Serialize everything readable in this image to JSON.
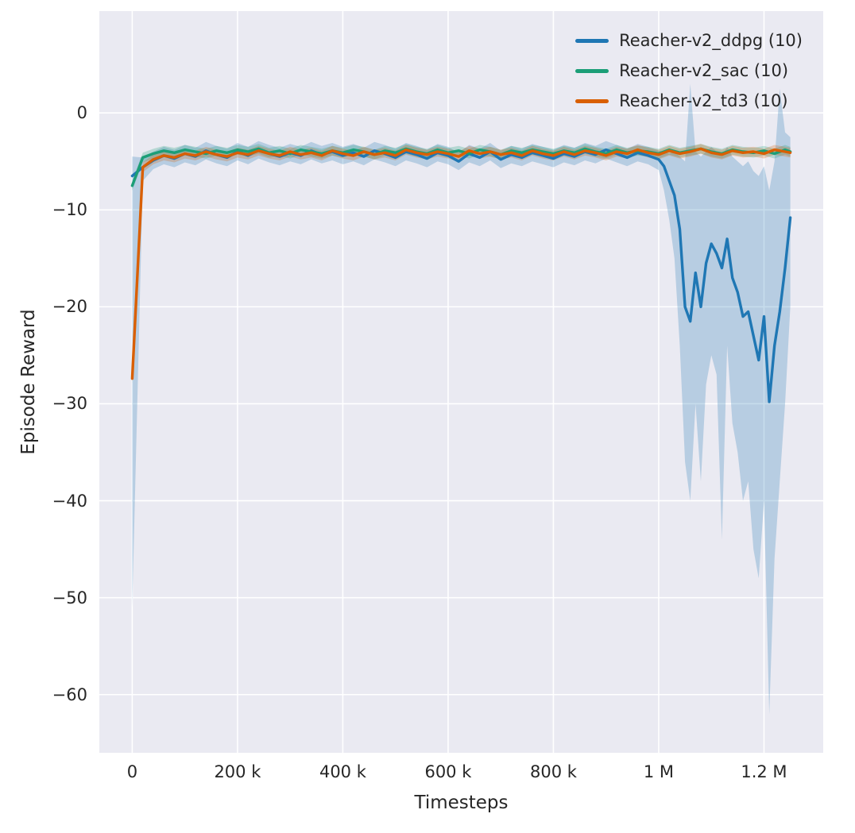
{
  "figure": {
    "background": "#ffffff",
    "plot_background": "#eaeaf2",
    "grid_color": "#ffffff",
    "text_color": "#262626",
    "band_opacity": 0.25
  },
  "chart_data": {
    "type": "line",
    "title": "",
    "xlabel": "Timesteps",
    "ylabel": "Episode Reward",
    "xlim": [
      -62500,
      1312500
    ],
    "ylim": [
      -66,
      10.5
    ],
    "grid": true,
    "legend_position": "upper right",
    "xticks": [
      {
        "v": 0,
        "label": "0"
      },
      {
        "v": 200000,
        "label": "200 k"
      },
      {
        "v": 400000,
        "label": "400 k"
      },
      {
        "v": 600000,
        "label": "600 k"
      },
      {
        "v": 800000,
        "label": "800 k"
      },
      {
        "v": 1000000,
        "label": "1 M"
      },
      {
        "v": 1200000,
        "label": "1.2 M"
      }
    ],
    "yticks": [
      {
        "v": 0,
        "label": "0"
      },
      {
        "v": -10,
        "label": "−10"
      },
      {
        "v": -20,
        "label": "−20"
      },
      {
        "v": -30,
        "label": "−30"
      },
      {
        "v": -40,
        "label": "−40"
      },
      {
        "v": -50,
        "label": "−50"
      },
      {
        "v": -60,
        "label": "−60"
      }
    ],
    "x": [
      0,
      20000,
      40000,
      60000,
      80000,
      100000,
      120000,
      140000,
      160000,
      180000,
      200000,
      220000,
      240000,
      260000,
      280000,
      300000,
      320000,
      340000,
      360000,
      380000,
      400000,
      420000,
      440000,
      460000,
      480000,
      500000,
      520000,
      540000,
      560000,
      580000,
      600000,
      620000,
      640000,
      660000,
      680000,
      700000,
      720000,
      740000,
      760000,
      780000,
      800000,
      820000,
      840000,
      860000,
      880000,
      900000,
      920000,
      940000,
      960000,
      980000,
      1000000,
      1020000,
      1040000,
      1060000,
      1080000,
      1100000,
      1120000,
      1140000,
      1160000,
      1180000,
      1200000,
      1220000,
      1240000,
      1250000
    ],
    "series": [
      {
        "name": "Reacher-v2_ddpg (10)",
        "color": "#1f77b4",
        "x": [
          0,
          20000,
          40000,
          60000,
          80000,
          100000,
          120000,
          140000,
          160000,
          180000,
          200000,
          220000,
          240000,
          260000,
          280000,
          300000,
          320000,
          340000,
          360000,
          380000,
          400000,
          420000,
          440000,
          460000,
          480000,
          500000,
          520000,
          540000,
          560000,
          580000,
          600000,
          620000,
          640000,
          660000,
          680000,
          700000,
          720000,
          740000,
          760000,
          780000,
          800000,
          820000,
          840000,
          860000,
          880000,
          900000,
          920000,
          940000,
          960000,
          980000,
          1000000,
          1010000,
          1020000,
          1030000,
          1040000,
          1050000,
          1060000,
          1070000,
          1080000,
          1090000,
          1100000,
          1110000,
          1120000,
          1130000,
          1140000,
          1150000,
          1160000,
          1170000,
          1180000,
          1190000,
          1200000,
          1210000,
          1220000,
          1230000,
          1240000,
          1250000
        ],
        "y": [
          -6.5,
          -5.6,
          -4.9,
          -4.4,
          -4.7,
          -4.2,
          -4.5,
          -3.9,
          -4.3,
          -4.6,
          -4.0,
          -4.4,
          -3.8,
          -4.2,
          -4.5,
          -4.1,
          -4.4,
          -3.9,
          -4.3,
          -4.0,
          -4.4,
          -4.1,
          -4.5,
          -3.9,
          -4.2,
          -4.6,
          -4.0,
          -4.3,
          -4.7,
          -4.1,
          -4.4,
          -5.0,
          -4.2,
          -4.6,
          -4.0,
          -4.8,
          -4.3,
          -4.6,
          -4.1,
          -4.4,
          -4.7,
          -4.2,
          -4.5,
          -4.0,
          -4.3,
          -3.8,
          -4.2,
          -4.6,
          -4.1,
          -4.4,
          -4.8,
          -5.5,
          -7.0,
          -8.5,
          -12.0,
          -20.0,
          -21.5,
          -16.5,
          -20.0,
          -15.5,
          -13.5,
          -14.5,
          -16.0,
          -13.0,
          -17.0,
          -18.5,
          -21.0,
          -20.5,
          -23.0,
          -25.5,
          -21.0,
          -29.8,
          -24.0,
          -20.5,
          -16.0,
          -10.8
        ],
        "lo": [
          -51.0,
          -7.0,
          -5.8,
          -5.3,
          -5.6,
          -5.1,
          -5.4,
          -4.8,
          -5.2,
          -5.5,
          -4.9,
          -5.3,
          -4.7,
          -5.1,
          -5.4,
          -5.0,
          -5.3,
          -4.8,
          -5.2,
          -4.9,
          -5.3,
          -5.0,
          -5.4,
          -4.8,
          -5.1,
          -5.5,
          -4.9,
          -5.2,
          -5.6,
          -5.0,
          -5.3,
          -5.9,
          -5.1,
          -5.5,
          -4.9,
          -5.7,
          -5.2,
          -5.5,
          -5.0,
          -5.3,
          -5.6,
          -5.1,
          -5.4,
          -4.9,
          -5.2,
          -4.7,
          -5.1,
          -5.5,
          -5.0,
          -5.3,
          -5.9,
          -8.0,
          -11.0,
          -15.0,
          -24.0,
          -36.0,
          -40.0,
          -30.0,
          -38.0,
          -28.0,
          -25.0,
          -27.0,
          -44.0,
          -24.0,
          -32.0,
          -35.0,
          -40.0,
          -38.0,
          -45.0,
          -48.0,
          -40.0,
          -62.0,
          -46.0,
          -38.0,
          -30.0,
          -20.0
        ],
        "hi": [
          -4.5,
          -4.6,
          -4.0,
          -3.5,
          -3.8,
          -3.3,
          -3.6,
          -3.0,
          -3.4,
          -3.7,
          -3.1,
          -3.5,
          -2.9,
          -3.3,
          -3.6,
          -3.2,
          -3.5,
          -3.0,
          -3.4,
          -3.1,
          -3.5,
          -3.2,
          -3.6,
          -3.0,
          -3.3,
          -3.7,
          -3.1,
          -3.4,
          -3.8,
          -3.2,
          -3.5,
          -4.1,
          -3.3,
          -3.7,
          -3.1,
          -3.9,
          -3.4,
          -3.7,
          -3.2,
          -3.5,
          -3.8,
          -3.3,
          -3.6,
          -3.1,
          -3.4,
          -2.9,
          -3.3,
          -3.7,
          -3.2,
          -3.5,
          -3.9,
          -4.0,
          -4.2,
          -4.0,
          -4.5,
          -5.0,
          3.0,
          -4.0,
          -4.5,
          -4.0,
          -3.5,
          -4.0,
          -4.5,
          -3.5,
          -4.5,
          -5.0,
          -5.5,
          -5.0,
          -6.0,
          -6.5,
          -5.5,
          -8.0,
          -5.0,
          2.5,
          -2.0,
          -2.5
        ]
      },
      {
        "name": "Reacher-v2_sac (10)",
        "color": "#1b9e77",
        "band": 0.5,
        "y": [
          -7.5,
          -4.6,
          -4.2,
          -3.9,
          -4.1,
          -3.8,
          -4.0,
          -4.2,
          -3.9,
          -4.1,
          -3.8,
          -4.0,
          -3.7,
          -4.1,
          -3.9,
          -4.2,
          -3.8,
          -4.0,
          -4.2,
          -3.9,
          -4.1,
          -3.8,
          -4.0,
          -4.3,
          -3.9,
          -4.1,
          -3.7,
          -4.0,
          -4.2,
          -3.8,
          -4.1,
          -3.9,
          -4.2,
          -3.8,
          -4.0,
          -4.3,
          -3.9,
          -4.1,
          -3.8,
          -4.0,
          -4.2,
          -3.9,
          -4.1,
          -3.7,
          -4.0,
          -4.2,
          -3.8,
          -4.1,
          -3.9,
          -4.0,
          -4.2,
          -3.8,
          -4.1,
          -3.9,
          -3.7,
          -4.0,
          -4.2,
          -3.8,
          -4.0,
          -4.1,
          -3.9,
          -4.2,
          -3.8,
          -4.0
        ]
      },
      {
        "name": "Reacher-v2_td3 (10)",
        "color": "#d95f02",
        "band": 0.5,
        "y": [
          -27.4,
          -5.6,
          -4.8,
          -4.4,
          -4.6,
          -4.2,
          -4.4,
          -4.0,
          -4.3,
          -4.5,
          -4.1,
          -4.3,
          -3.9,
          -4.2,
          -4.4,
          -4.0,
          -4.3,
          -4.1,
          -4.4,
          -3.9,
          -4.2,
          -4.4,
          -4.0,
          -4.3,
          -4.1,
          -4.4,
          -3.8,
          -4.1,
          -4.3,
          -4.0,
          -4.2,
          -4.5,
          -3.9,
          -4.2,
          -4.0,
          -4.3,
          -4.1,
          -4.4,
          -3.9,
          -4.2,
          -4.4,
          -4.0,
          -4.3,
          -3.9,
          -4.1,
          -4.4,
          -4.0,
          -4.2,
          -3.8,
          -4.1,
          -4.3,
          -3.9,
          -4.2,
          -4.0,
          -3.7,
          -4.1,
          -4.3,
          -3.9,
          -4.1,
          -4.0,
          -4.2,
          -3.8,
          -4.0,
          -4.1
        ]
      }
    ]
  }
}
